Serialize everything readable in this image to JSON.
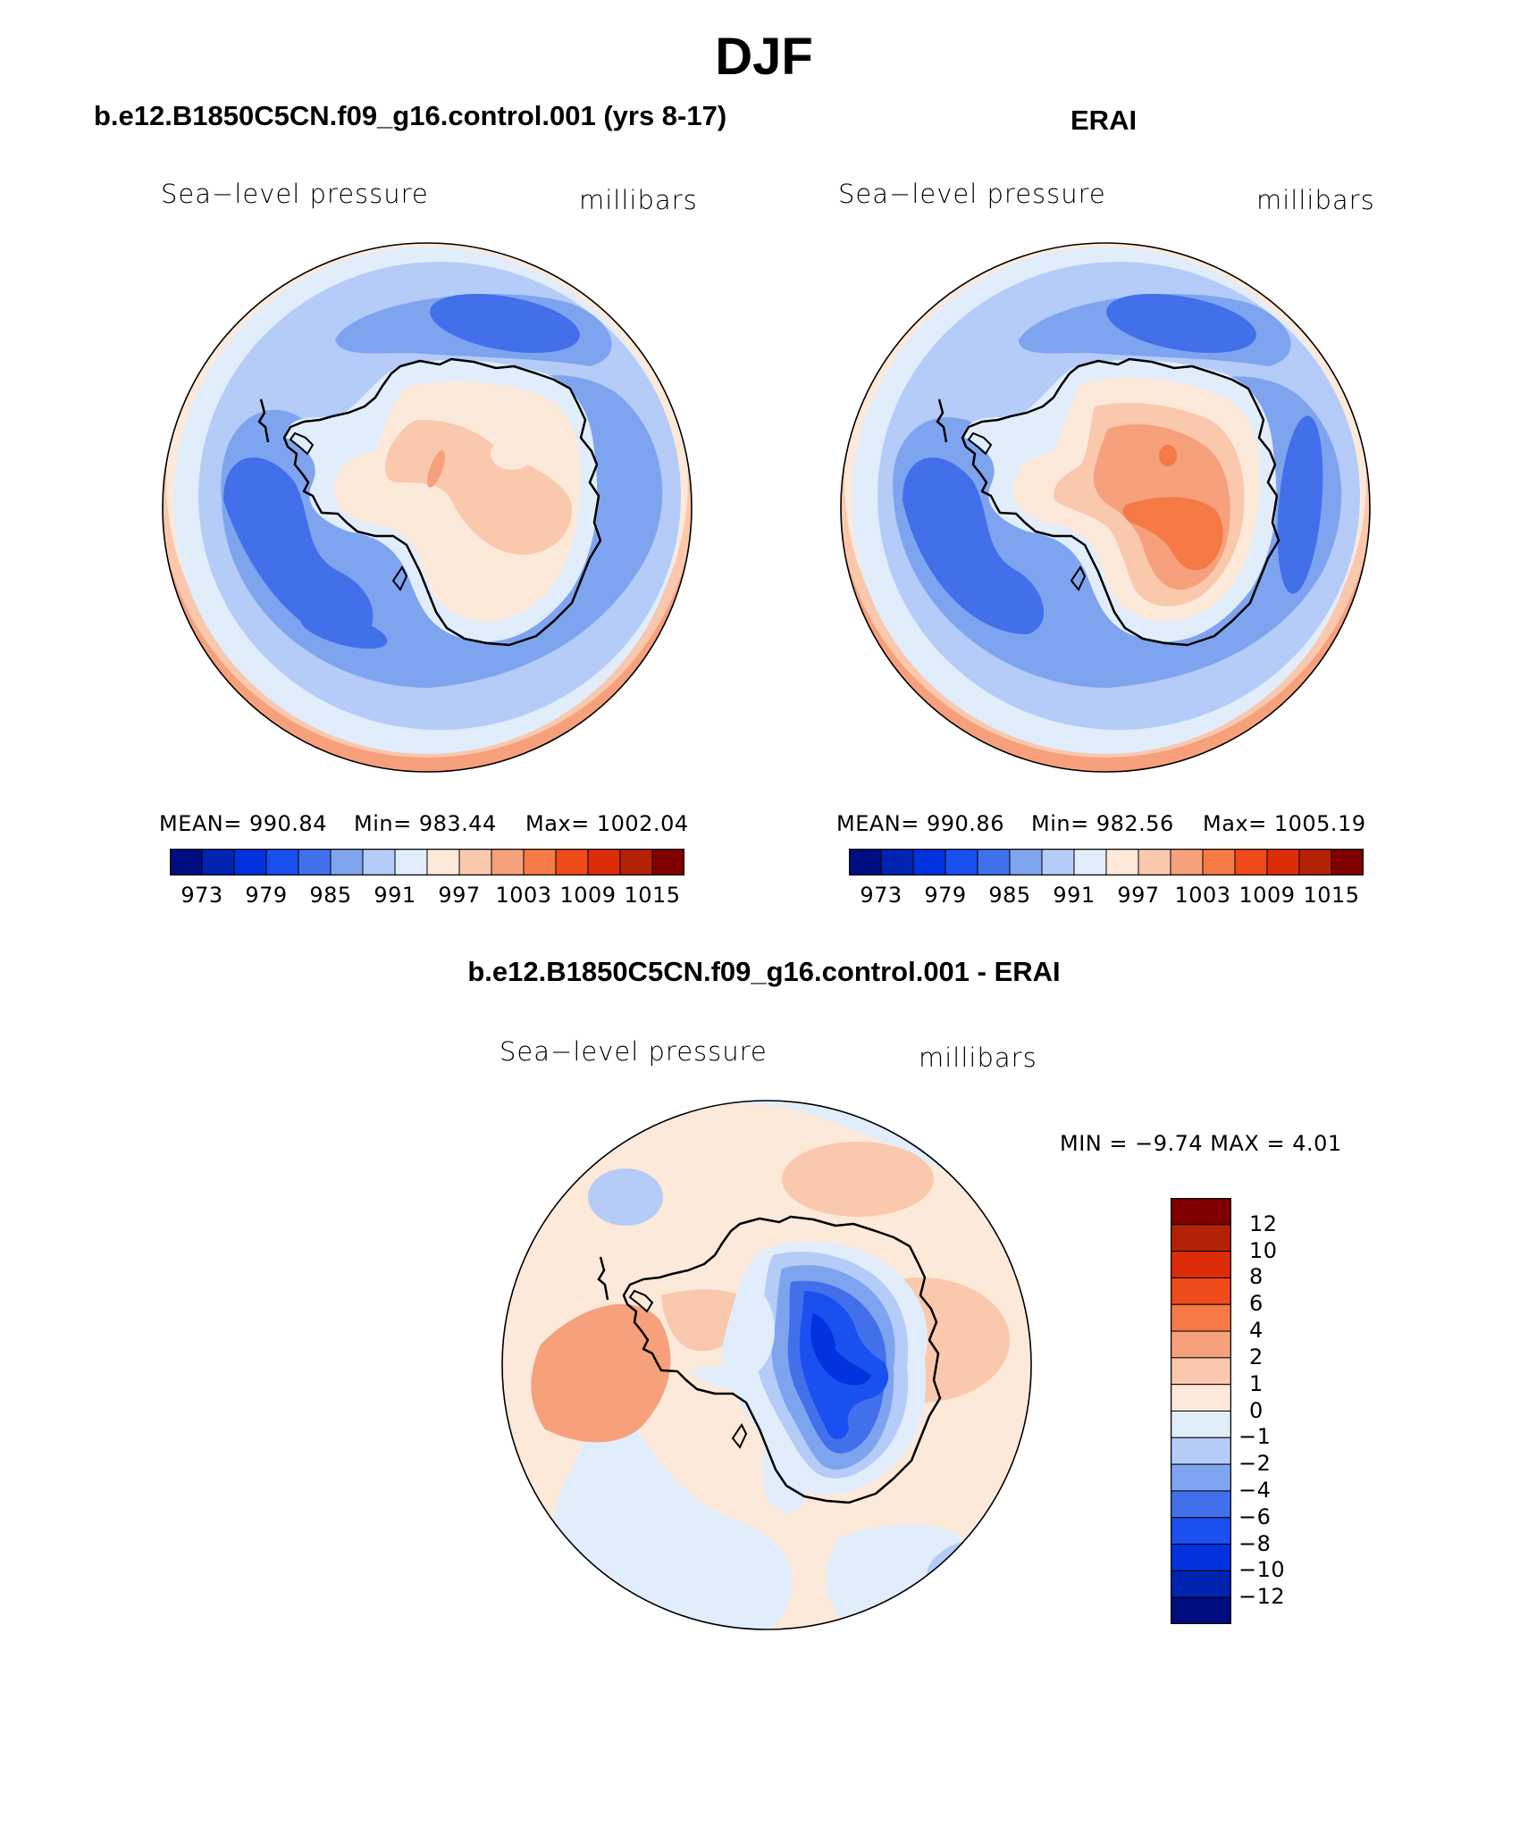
{
  "page": {
    "season_title": "DJF"
  },
  "panels": [
    {
      "id": "model",
      "title": "b.e12.B1850C5CN.f09_g16.control.001 (yrs 8-17)",
      "variable": "Sea−level pressure",
      "units": "millibars",
      "stats": {
        "mean": "MEAN= 990.84",
        "min": "Min= 983.44",
        "max": "Max= 1002.04"
      },
      "colorbar_ticks": [
        "973",
        "979",
        "985",
        "991",
        "997",
        "1003",
        "1009",
        "1015"
      ]
    },
    {
      "id": "obs",
      "title": "ERAI",
      "variable": "Sea−level pressure",
      "units": "millibars",
      "stats": {
        "mean": "MEAN= 990.86",
        "min": "Min= 982.56",
        "max": "Max= 1005.19"
      },
      "colorbar_ticks": [
        "973",
        "979",
        "985",
        "991",
        "997",
        "1003",
        "1009",
        "1015"
      ]
    }
  ],
  "difference": {
    "title": "b.e12.B1850C5CN.f09_g16.control.001 - ERAI",
    "variable": "Sea−level pressure",
    "units": "millibars",
    "minmax": "MIN =   −9.74  MAX =     4.01",
    "colorbar_ticks": [
      "12",
      "10",
      "8",
      "6",
      "4",
      "2",
      "1",
      "0",
      "−1",
      "−2",
      "−4",
      "−6",
      "−8",
      "−10",
      "−12"
    ]
  },
  "chart_data": [
    {
      "type": "heatmap",
      "title": "b.e12.B1850C5CN.f09_g16.control.001 (yrs 8-17)",
      "variable": "Sea-level pressure",
      "units": "millibars",
      "projection": "south polar stereographic",
      "mean": 990.84,
      "min": 983.44,
      "max": 1002.04,
      "levels": [
        973,
        976,
        979,
        982,
        985,
        988,
        991,
        994,
        997,
        1000,
        1003,
        1006,
        1009,
        1012,
        1015
      ]
    },
    {
      "type": "heatmap",
      "title": "ERAI",
      "variable": "Sea-level pressure",
      "units": "millibars",
      "projection": "south polar stereographic",
      "mean": 990.86,
      "min": 982.56,
      "max": 1005.19,
      "levels": [
        973,
        976,
        979,
        982,
        985,
        988,
        991,
        994,
        997,
        1000,
        1003,
        1006,
        1009,
        1012,
        1015
      ]
    },
    {
      "type": "heatmap",
      "title": "b.e12.B1850C5CN.f09_g16.control.001 - ERAI",
      "variable": "Sea-level pressure",
      "units": "millibars",
      "projection": "south polar stereographic",
      "min": -9.74,
      "max": 4.01,
      "levels": [
        -12,
        -10,
        -8,
        -6,
        -4,
        -2,
        -1,
        0,
        1,
        2,
        4,
        6,
        8,
        10,
        12
      ]
    }
  ],
  "colors": {
    "slp_palette": [
      "#000d80",
      "#0023b0",
      "#0033dd",
      "#1a4ff0",
      "#4170ea",
      "#7fa4ef",
      "#b4ccf7",
      "#e1edfb",
      "#fde9d9",
      "#f9c8ad",
      "#f6a07c",
      "#f57a45",
      "#ef4a1a",
      "#dc2d08",
      "#b42206",
      "#800000"
    ],
    "diff_palette": [
      "#800000",
      "#b42206",
      "#dc2d08",
      "#ef4a1a",
      "#f57a45",
      "#f6a07c",
      "#f9c8ad",
      "#fde9d9",
      "#e1edfb",
      "#b4ccf7",
      "#7fa4ef",
      "#4170ea",
      "#1a4ff0",
      "#0033dd",
      "#0023b0",
      "#000d80"
    ]
  }
}
